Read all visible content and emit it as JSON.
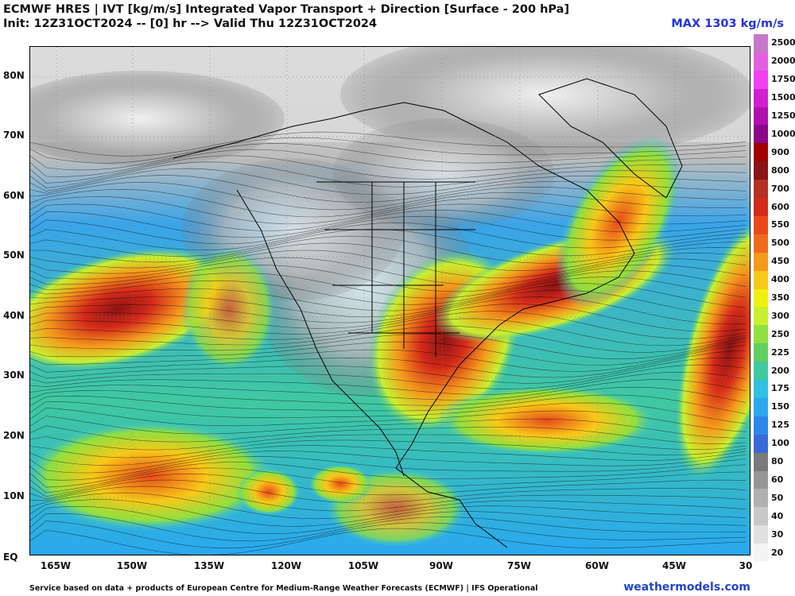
{
  "header": {
    "title_line1": "ECMWF HRES | IVT [kg/m/s] Integrated Vapor Transport + Direction [Surface - 200 hPa]",
    "title_line2": "Init: 12Z31OCT2024 -- [0] hr --> Valid Thu 12Z31OCT2024",
    "max_label": "MAX 1303 kg/m/s"
  },
  "map": {
    "lat_labels": [
      "80N",
      "70N",
      "60N",
      "50N",
      "40N",
      "30N",
      "20N",
      "10N",
      "EQ"
    ],
    "lon_labels": [
      "165W",
      "150W",
      "135W",
      "120W",
      "105W",
      "90W",
      "75W",
      "60W",
      "45W",
      "30"
    ]
  },
  "colorbar": {
    "levels": [
      "2500",
      "2000",
      "1750",
      "1500",
      "1250",
      "1000",
      "900",
      "800",
      "700",
      "600",
      "550",
      "500",
      "450",
      "400",
      "350",
      "300",
      "250",
      "225",
      "200",
      "175",
      "150",
      "125",
      "100",
      "80",
      "60",
      "50",
      "40",
      "30",
      "20"
    ],
    "colors": [
      "#c878c8",
      "#e060e0",
      "#f040f0",
      "#d020d0",
      "#b010b0",
      "#8a0a8a",
      "#a00000",
      "#8a1414",
      "#b43222",
      "#d42a1a",
      "#e84a1c",
      "#f06a1c",
      "#f49a1c",
      "#f8c818",
      "#f0f010",
      "#c8f030",
      "#90e040",
      "#60d060",
      "#40c8a0",
      "#30c0e0",
      "#2aa8f0",
      "#2a88e8",
      "#3a6ad8",
      "#7a7a7a",
      "#969696",
      "#b0b0b0",
      "#c8c8c8",
      "#e0e0e0",
      "#f4f4f4"
    ]
  },
  "footer": {
    "credit": "Service based on data + products of European Centre for Medium-Range Weather Forecasts (ECMWF) | IFS Operational",
    "brand": "weathermodels.com"
  }
}
